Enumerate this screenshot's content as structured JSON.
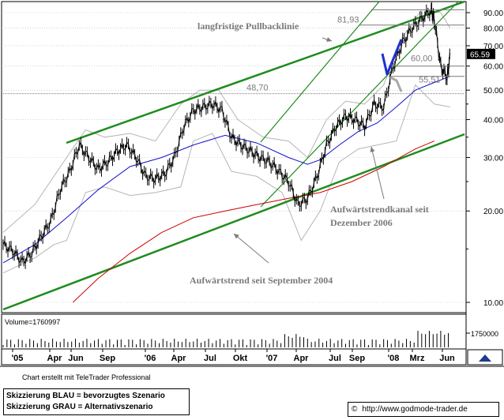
{
  "chart_data": {
    "type": "line",
    "y_scale": "log",
    "ylim": [
      9.5,
      100
    ],
    "y_ticks": [
      "10.00",
      "20.00",
      "30.00",
      "40.00",
      "50.00",
      "60.00",
      "70.00",
      "80.00",
      "90.00"
    ],
    "x_ticks": [
      "'05",
      "Apr",
      "Jun",
      "Sep",
      "'06",
      "Apr",
      "Jul",
      "Okt",
      "'07",
      "Apr",
      "Jul",
      "Sep",
      "'08",
      "Mrz",
      "Jun"
    ],
    "last_price": "65.59",
    "volume_label": "Volume=1760997",
    "volume_tick": "1750000",
    "levels": [
      {
        "label": "81,93",
        "value": 81.93
      },
      {
        "label": "60,00",
        "value": 60.0
      },
      {
        "label": "55,51",
        "value": 55.51
      },
      {
        "label": "48,70",
        "value": 48.7
      }
    ],
    "annotations": {
      "pullback": "langfristige Pullbacklinie",
      "channel_l1": "Aufwärtstrendkanal seit",
      "channel_l2": "Dezember 2006",
      "trend": "Aufwärtstrend seit September 2004"
    },
    "price_points": [
      [
        0,
        15.5
      ],
      [
        3,
        14.8
      ],
      [
        6,
        13.6
      ],
      [
        9,
        14.5
      ],
      [
        12,
        16.5
      ],
      [
        15,
        18.5
      ],
      [
        18,
        23.5
      ],
      [
        21,
        27
      ],
      [
        24,
        33
      ],
      [
        27,
        30
      ],
      [
        30,
        27.5
      ],
      [
        33,
        29
      ],
      [
        36,
        31.5
      ],
      [
        39,
        33
      ],
      [
        42,
        30
      ],
      [
        45,
        26
      ],
      [
        48,
        25.5
      ],
      [
        51,
        26.5
      ],
      [
        54,
        30
      ],
      [
        57,
        38
      ],
      [
        60,
        43
      ],
      [
        63,
        44
      ],
      [
        66,
        45
      ],
      [
        69,
        43
      ],
      [
        72,
        35
      ],
      [
        75,
        33
      ],
      [
        78,
        31.5
      ],
      [
        81,
        30
      ],
      [
        84,
        29
      ],
      [
        87,
        27
      ],
      [
        90,
        25
      ],
      [
        93,
        21
      ],
      [
        96,
        22
      ],
      [
        99,
        26
      ],
      [
        102,
        33
      ],
      [
        105,
        38
      ],
      [
        108,
        41
      ],
      [
        111,
        40
      ],
      [
        114,
        38
      ],
      [
        117,
        45
      ],
      [
        120,
        44
      ],
      [
        123,
        60
      ],
      [
        126,
        72
      ],
      [
        129,
        80
      ],
      [
        132,
        86
      ],
      [
        135,
        92
      ],
      [
        136,
        85
      ],
      [
        138,
        60
      ],
      [
        140,
        55
      ],
      [
        141,
        65.59
      ]
    ],
    "ma_blue": [
      [
        0,
        13.5
      ],
      [
        10,
        15.5
      ],
      [
        20,
        19
      ],
      [
        30,
        23.5
      ],
      [
        40,
        28
      ],
      [
        50,
        30
      ],
      [
        60,
        33
      ],
      [
        70,
        35.5
      ],
      [
        80,
        33.5
      ],
      [
        90,
        30
      ],
      [
        96,
        28.5
      ],
      [
        100,
        29.5
      ],
      [
        106,
        33
      ],
      [
        112,
        36.5
      ],
      [
        118,
        39
      ],
      [
        124,
        44
      ],
      [
        130,
        50
      ],
      [
        136,
        53
      ],
      [
        141,
        55.5
      ]
    ],
    "ma_red": [
      [
        22,
        10
      ],
      [
        30,
        12
      ],
      [
        40,
        14.5
      ],
      [
        50,
        17
      ],
      [
        60,
        19
      ],
      [
        70,
        20
      ],
      [
        80,
        21
      ],
      [
        90,
        22
      ],
      [
        100,
        23
      ],
      [
        110,
        25
      ],
      [
        120,
        28
      ],
      [
        130,
        32
      ],
      [
        136,
        34
      ]
    ]
  },
  "footer": {
    "credit": "Chart erstellt mit TeleTrader Professional",
    "legend_line1": "Skizzierung BLAU = bevorzugtes Szenario",
    "legend_line2": "Skizzierung GRAU = Alternativszenario",
    "url": "http://www.godmode-trader.de",
    "copyright_symbol": "©"
  }
}
